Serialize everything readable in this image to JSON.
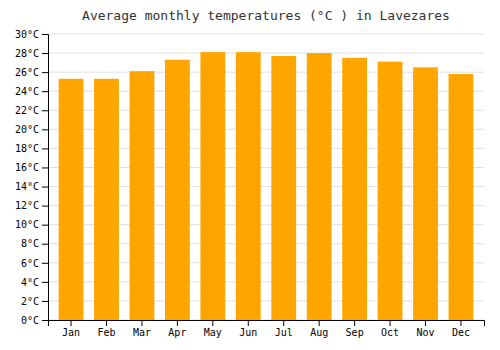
{
  "chart_data": {
    "type": "bar",
    "title": "Average monthly temperatures (°C ) in Lavezares",
    "categories": [
      "Jan",
      "Feb",
      "Mar",
      "Apr",
      "May",
      "Jun",
      "Jul",
      "Aug",
      "Sep",
      "Oct",
      "Nov",
      "Dec"
    ],
    "values": [
      25.3,
      25.3,
      26.1,
      27.3,
      28.1,
      28.1,
      27.7,
      28.0,
      27.5,
      27.1,
      26.5,
      25.8
    ],
    "color": "#FFA500",
    "ylim": [
      0,
      30
    ],
    "yticks": [
      {
        "value": 0,
        "label": "0°C"
      },
      {
        "value": 2,
        "label": "2°C"
      },
      {
        "value": 4,
        "label": "4°C"
      },
      {
        "value": 6,
        "label": "6°C"
      },
      {
        "value": 8,
        "label": "8°C"
      },
      {
        "value": 10,
        "label": "10°C"
      },
      {
        "value": 12,
        "label": "12°C"
      },
      {
        "value": 14,
        "label": "14°C"
      },
      {
        "value": 16,
        "label": "16°C"
      },
      {
        "value": 18,
        "label": "18°C"
      },
      {
        "value": 20,
        "label": "20°C"
      },
      {
        "value": 22,
        "label": "22°C"
      },
      {
        "value": 24,
        "label": "24°C"
      },
      {
        "value": 26,
        "label": "26°C"
      },
      {
        "value": 28,
        "label": "28°C"
      },
      {
        "value": 30,
        "label": "30°C"
      }
    ],
    "grid": true
  }
}
